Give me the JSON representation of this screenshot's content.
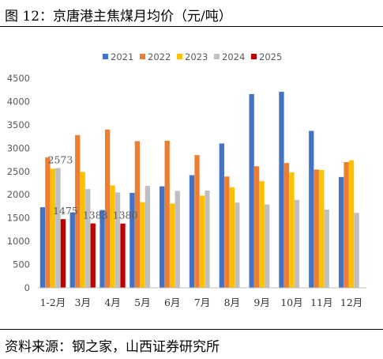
{
  "header": {
    "title": "图 12：京唐港主焦煤月均价（元/吨）"
  },
  "footer": {
    "source": "资料来源：钢之家，山西证券研究所"
  },
  "colors": {
    "2021": "#4472C4",
    "2022": "#ED7D31",
    "2023": "#FFC000",
    "2024": "#BFBFBF",
    "2025": "#C00000"
  },
  "chart_data": {
    "type": "bar",
    "categories": [
      "1-2月",
      "3月",
      "4月",
      "5月",
      "6月",
      "7月",
      "8月",
      "9月",
      "10月",
      "11月",
      "12月"
    ],
    "series": [
      {
        "name": "2021",
        "values": [
          1730,
          1620,
          1670,
          2040,
          2180,
          2420,
          3100,
          4160,
          4210,
          3370,
          2380
        ]
      },
      {
        "name": "2022",
        "values": [
          2800,
          3280,
          3400,
          3150,
          3160,
          2850,
          2390,
          2610,
          2680,
          2540,
          2700
        ]
      },
      {
        "name": "2023",
        "values": [
          2560,
          2490,
          2200,
          1840,
          1810,
          1980,
          2160,
          2290,
          2480,
          2530,
          2740
        ]
      },
      {
        "name": "2024",
        "values": [
          2573,
          2120,
          2050,
          2190,
          2080,
          2090,
          1830,
          1790,
          1890,
          1680,
          1610
        ]
      },
      {
        "name": "2025",
        "values": [
          1475,
          1383,
          1380,
          null,
          null,
          null,
          null,
          null,
          null,
          null,
          null
        ]
      }
    ],
    "data_labels": [
      {
        "series": "2024",
        "category": "1-2月",
        "text": "2573"
      },
      {
        "series": "2025",
        "category": "1-2月",
        "text": "1475"
      },
      {
        "series": "2025",
        "category": "3月",
        "text": "1383"
      },
      {
        "series": "2025",
        "category": "4月",
        "text": "1380"
      }
    ],
    "yticks": [
      "0",
      "500",
      "1000",
      "1500",
      "2000",
      "2500",
      "3000",
      "3500",
      "4000",
      "4500"
    ],
    "ylim": [
      0,
      4500
    ],
    "legend": "top",
    "grid": false
  }
}
